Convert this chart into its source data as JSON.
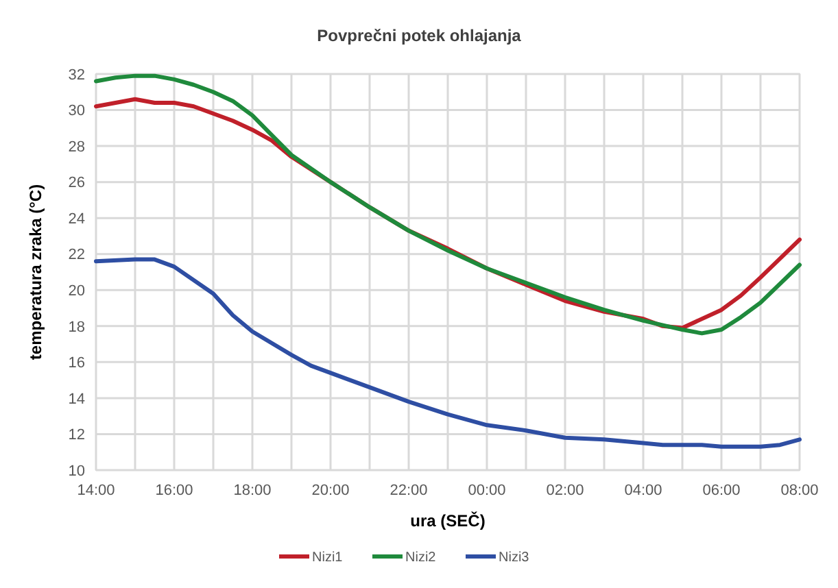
{
  "chart_data": {
    "type": "line",
    "title": "Povprečni potek ohlajanja",
    "xlabel": "ura (SEČ)",
    "ylabel": "temperatura zraka (°C)",
    "xlim": [
      "2000-01-01T14:00",
      "2000-01-02T08:00"
    ],
    "ylim": [
      10,
      32
    ],
    "xticks": [
      {
        "value": "2000-01-01T14:00",
        "label": "14:00"
      },
      {
        "value": "2000-01-01T15:00",
        "label": null
      },
      {
        "value": "2000-01-01T16:00",
        "label": "16:00"
      },
      {
        "value": "2000-01-01T17:00",
        "label": null
      },
      {
        "value": "2000-01-01T18:00",
        "label": "18:00"
      },
      {
        "value": "2000-01-01T19:00",
        "label": null
      },
      {
        "value": "2000-01-01T20:00",
        "label": "20:00"
      },
      {
        "value": "2000-01-01T21:00",
        "label": null
      },
      {
        "value": "2000-01-01T22:00",
        "label": "22:00"
      },
      {
        "value": "2000-01-01T23:00",
        "label": null
      },
      {
        "value": "2000-01-02T00:00",
        "label": "00:00"
      },
      {
        "value": "2000-01-02T01:00",
        "label": null
      },
      {
        "value": "2000-01-02T02:00",
        "label": "02:00"
      },
      {
        "value": "2000-01-02T03:00",
        "label": null
      },
      {
        "value": "2000-01-02T04:00",
        "label": "04:00"
      },
      {
        "value": "2000-01-02T05:00",
        "label": null
      },
      {
        "value": "2000-01-02T06:00",
        "label": "06:00"
      },
      {
        "value": "2000-01-02T07:00",
        "label": null
      },
      {
        "value": "2000-01-02T08:00",
        "label": "08:00"
      }
    ],
    "yticks": [
      10,
      12,
      14,
      16,
      18,
      20,
      22,
      24,
      26,
      28,
      30,
      32
    ],
    "grid": true,
    "legend": "bottom",
    "line_style": "solid",
    "marker": "none",
    "series": [
      {
        "name": "Nizi1",
        "color": "#c0202a",
        "x": [
          "2000-01-01T14:00",
          "2000-01-01T15:00",
          "2000-01-01T15:30",
          "2000-01-01T16:00",
          "2000-01-01T16:30",
          "2000-01-01T17:00",
          "2000-01-01T17:30",
          "2000-01-01T18:00",
          "2000-01-01T18:30",
          "2000-01-01T19:00",
          "2000-01-01T20:00",
          "2000-01-01T21:00",
          "2000-01-01T22:00",
          "2000-01-01T23:00",
          "2000-01-02T00:00",
          "2000-01-02T01:00",
          "2000-01-02T02:00",
          "2000-01-02T03:00",
          "2000-01-02T04:00",
          "2000-01-02T04:30",
          "2000-01-02T05:00",
          "2000-01-02T06:00",
          "2000-01-02T06:30",
          "2000-01-02T07:00",
          "2000-01-02T08:00"
        ],
        "values": [
          30.2,
          30.6,
          30.4,
          30.4,
          30.2,
          29.8,
          29.4,
          28.9,
          28.3,
          27.4,
          26.0,
          24.6,
          23.3,
          22.3,
          21.2,
          20.3,
          19.4,
          18.8,
          18.4,
          18.0,
          17.9,
          18.9,
          19.7,
          20.7,
          22.8
        ]
      },
      {
        "name": "Nizi2",
        "color": "#1f8a3c",
        "x": [
          "2000-01-01T14:00",
          "2000-01-01T14:30",
          "2000-01-01T15:00",
          "2000-01-01T15:30",
          "2000-01-01T16:00",
          "2000-01-01T16:30",
          "2000-01-01T17:00",
          "2000-01-01T17:30",
          "2000-01-01T18:00",
          "2000-01-01T18:30",
          "2000-01-01T19:00",
          "2000-01-01T20:00",
          "2000-01-01T21:00",
          "2000-01-01T22:00",
          "2000-01-01T23:00",
          "2000-01-02T00:00",
          "2000-01-02T01:00",
          "2000-01-02T02:00",
          "2000-01-02T03:00",
          "2000-01-02T04:00",
          "2000-01-02T05:00",
          "2000-01-02T05:30",
          "2000-01-02T06:00",
          "2000-01-02T06:30",
          "2000-01-02T07:00",
          "2000-01-02T08:00"
        ],
        "values": [
          31.6,
          31.8,
          31.9,
          31.9,
          31.7,
          31.4,
          31.0,
          30.5,
          29.7,
          28.6,
          27.5,
          26.0,
          24.6,
          23.3,
          22.2,
          21.2,
          20.4,
          19.6,
          18.9,
          18.3,
          17.8,
          17.6,
          17.8,
          18.5,
          19.3,
          21.4
        ]
      },
      {
        "name": "Nizi3",
        "color": "#2e4ea3",
        "x": [
          "2000-01-01T14:00",
          "2000-01-01T15:00",
          "2000-01-01T15:30",
          "2000-01-01T16:00",
          "2000-01-01T17:00",
          "2000-01-01T17:30",
          "2000-01-01T18:00",
          "2000-01-01T19:00",
          "2000-01-01T19:30",
          "2000-01-01T20:00",
          "2000-01-01T21:00",
          "2000-01-01T22:00",
          "2000-01-01T23:00",
          "2000-01-02T00:00",
          "2000-01-02T01:00",
          "2000-01-02T02:00",
          "2000-01-02T03:00",
          "2000-01-02T04:00",
          "2000-01-02T04:30",
          "2000-01-02T05:00",
          "2000-01-02T05:30",
          "2000-01-02T06:00",
          "2000-01-02T07:00",
          "2000-01-02T07:30",
          "2000-01-02T08:00"
        ],
        "values": [
          21.6,
          21.7,
          21.7,
          21.3,
          19.8,
          18.6,
          17.7,
          16.4,
          15.8,
          15.4,
          14.6,
          13.8,
          13.1,
          12.5,
          12.2,
          11.8,
          11.7,
          11.5,
          11.4,
          11.4,
          11.4,
          11.3,
          11.3,
          11.4,
          11.7
        ]
      }
    ]
  }
}
